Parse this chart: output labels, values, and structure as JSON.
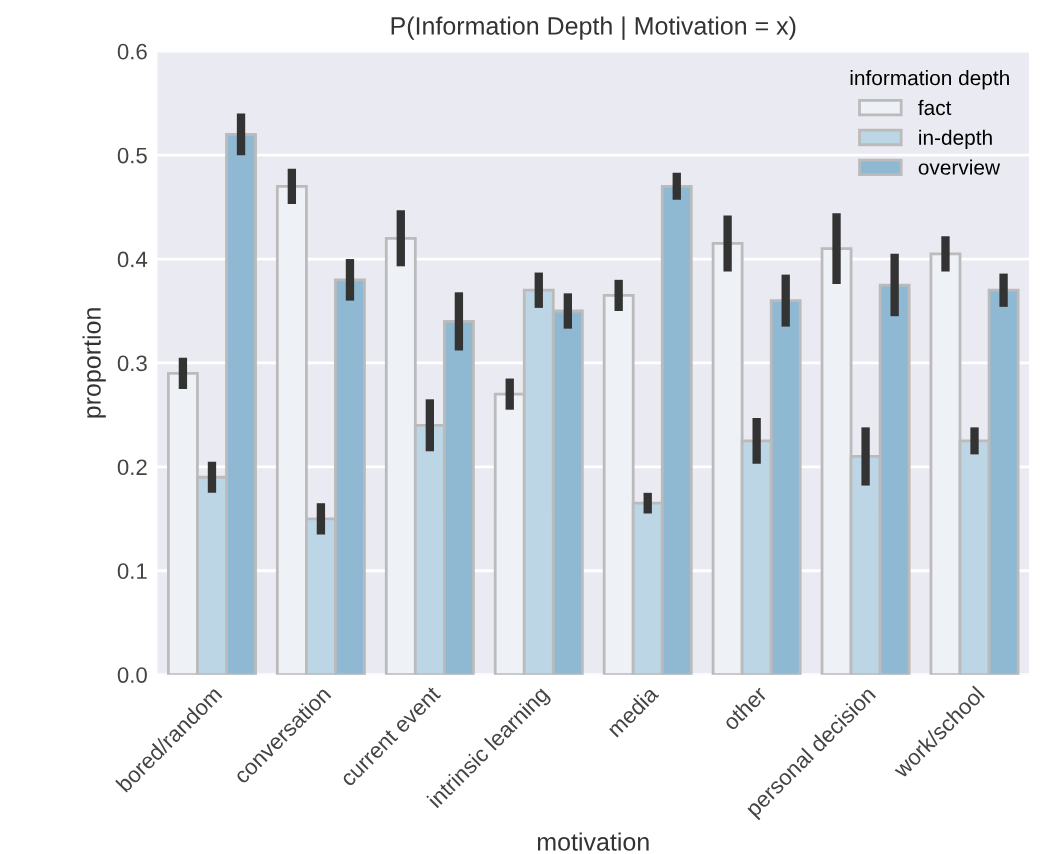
{
  "chart_data": {
    "type": "bar",
    "title": "P(Information Depth | Motivation = x)",
    "xlabel": "motivation",
    "ylabel": "proportion",
    "legend_title": "information depth",
    "categories": [
      "bored/random",
      "conversation",
      "current event",
      "intrinsic learning",
      "media",
      "other",
      "personal decision",
      "work/school"
    ],
    "series": [
      {
        "name": "fact",
        "color": "#eef1f6",
        "values": [
          0.29,
          0.47,
          0.42,
          0.27,
          0.365,
          0.415,
          0.41,
          0.405
        ],
        "errors": [
          0.015,
          0.017,
          0.027,
          0.015,
          0.015,
          0.027,
          0.034,
          0.017
        ]
      },
      {
        "name": "in-depth",
        "color": "#bcd6e5",
        "values": [
          0.19,
          0.15,
          0.24,
          0.37,
          0.165,
          0.225,
          0.21,
          0.225
        ],
        "errors": [
          0.015,
          0.015,
          0.025,
          0.017,
          0.01,
          0.022,
          0.028,
          0.013
        ]
      },
      {
        "name": "overview",
        "color": "#8fb8d2",
        "values": [
          0.52,
          0.38,
          0.34,
          0.35,
          0.47,
          0.36,
          0.375,
          0.37
        ],
        "errors": [
          0.02,
          0.02,
          0.028,
          0.017,
          0.013,
          0.025,
          0.03,
          0.016
        ]
      }
    ],
    "ylim": [
      0,
      0.6
    ],
    "yticks": [
      {
        "value": 0,
        "label": "0.0"
      },
      0.1,
      0.2,
      0.3,
      0.4,
      0.5,
      0.6
    ],
    "grid": "y",
    "legend": "top right"
  }
}
